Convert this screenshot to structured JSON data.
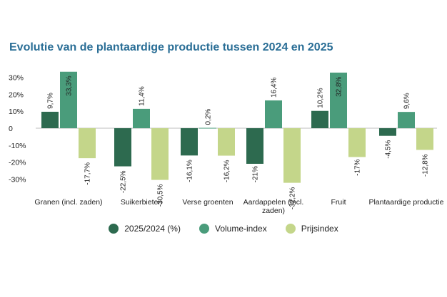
{
  "chart_data": {
    "type": "bar",
    "title": "Evolutie van de plantaardige productie tussen 2024 en 2025",
    "categories": [
      [
        "Granen (incl. zaden)"
      ],
      [
        "Suikerbieten"
      ],
      [
        "Verse groenten"
      ],
      [
        "Aardappelen (incl.",
        "zaden)"
      ],
      [
        "Fruit"
      ],
      [
        "Plantaardige productie"
      ]
    ],
    "series": [
      {
        "name": "2025/2024 (%)",
        "color": "#2d6a4f",
        "values": [
          9.7,
          -22.5,
          -16.1,
          -21,
          10.2,
          -4.5
        ],
        "labels": [
          "9,7%",
          "-22,5%",
          "-16,1%",
          "-21%",
          "10,2%",
          "-4,5%"
        ]
      },
      {
        "name": "Volume-index",
        "color": "#4a9c7b",
        "values": [
          33.3,
          11.4,
          0.2,
          16.4,
          32.8,
          9.6
        ],
        "labels": [
          "33,3%",
          "11,4%",
          "0,2%",
          "16,4%",
          "32,8%",
          "9,6%"
        ]
      },
      {
        "name": "Prijsindex",
        "color": "#c4d68a",
        "values": [
          -17.7,
          -30.5,
          -16.2,
          -32.2,
          -17,
          -12.8
        ],
        "labels": [
          "-17,7%",
          "-30,5%",
          "-16,2%",
          "-32,2%",
          "-17%",
          "-12,8%"
        ]
      }
    ],
    "yticks": [
      30,
      20,
      10,
      0,
      -10,
      -20,
      -30
    ],
    "ytick_labels": [
      "30%",
      "20%",
      "10%",
      "0",
      "-10%",
      "-20%",
      "-30%"
    ],
    "ylim": [
      -35,
      35
    ],
    "xlabel": "",
    "ylabel": "",
    "legend": "bottom",
    "grid": false
  }
}
